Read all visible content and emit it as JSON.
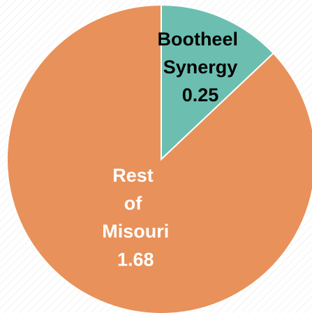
{
  "chart_data": {
    "type": "pie",
    "categories": [
      "Bootheel Synergy",
      "Rest of Misouri"
    ],
    "values": [
      0.25,
      1.68
    ],
    "colors": [
      "#6cbfb0",
      "#e8915a"
    ]
  }
}
